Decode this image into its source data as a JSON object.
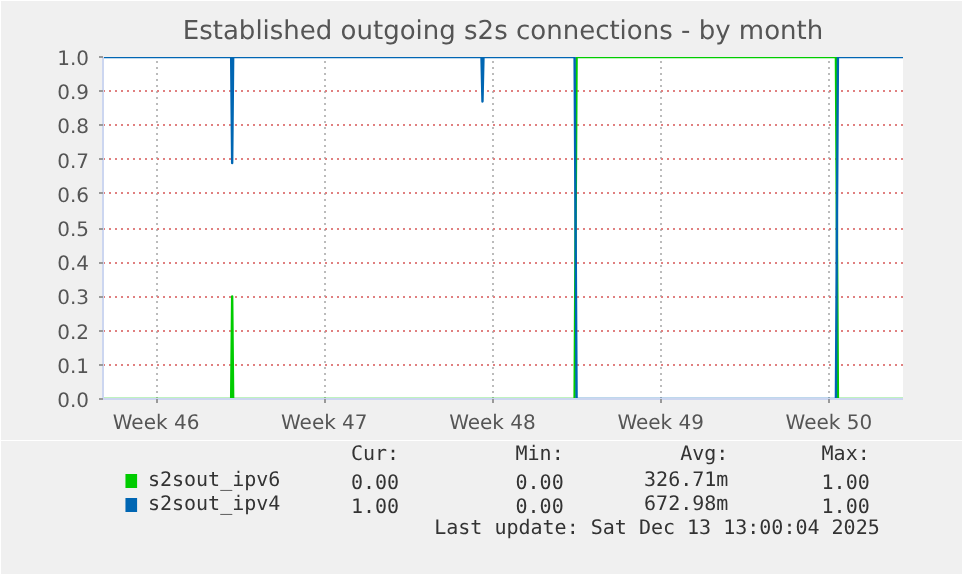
{
  "chart_data": {
    "type": "line",
    "title": "Established outgoing s2s connections - by month",
    "xlim": [
      "2025-11-07T19:00",
      "2025-12-11T02:00"
    ],
    "xticks": [
      {
        "value": "2025-11-10",
        "label": "Week 46"
      },
      {
        "value": "2025-11-17",
        "label": "Week 47"
      },
      {
        "value": "2025-11-24",
        "label": "Week 48"
      },
      {
        "value": "2025-12-01",
        "label": "Week 49"
      },
      {
        "value": "2025-12-08",
        "label": "Week 50"
      }
    ],
    "ylim": [
      0,
      1
    ],
    "yticks": [
      {
        "value": 0,
        "label": "0.0"
      },
      {
        "value": 0.1,
        "label": "0.1"
      },
      {
        "value": 0.2,
        "label": "0.2"
      },
      {
        "value": 0.3,
        "label": "0.3"
      },
      {
        "value": 0.4,
        "label": "0.4"
      },
      {
        "value": 0.5,
        "label": "0.5"
      },
      {
        "value": 0.6,
        "label": "0.6"
      },
      {
        "value": 0.7,
        "label": "0.7"
      },
      {
        "value": 0.8,
        "label": "0.8"
      },
      {
        "value": 0.9,
        "label": "0.9"
      },
      {
        "value": 1,
        "label": "1.0"
      }
    ],
    "grid": true,
    "legend": "bottom",
    "marker": "none",
    "line_style": "solid",
    "series": [
      {
        "name": "s2sout_ipv6",
        "color": "#00cc00",
        "x": [
          "2025-11-07T19:00",
          "2025-11-13T03:00",
          "2025-11-13T04:00",
          "2025-11-13T05:00",
          "2025-11-27T10:00",
          "2025-11-27T12:00",
          "2025-12-08T07:00",
          "2025-12-08T09:00",
          "2025-12-11T02:00"
        ],
        "values": [
          0,
          0,
          0.3,
          0,
          0,
          1,
          1,
          0,
          0
        ]
      },
      {
        "name": "s2sout_ipv4",
        "color": "#0066b3",
        "x": [
          "2025-11-07T19:00",
          "2025-11-13T03:00",
          "2025-11-13T04:00",
          "2025-11-13T05:00",
          "2025-11-23T13:00",
          "2025-11-23T14:00",
          "2025-11-23T15:00",
          "2025-11-27T10:00",
          "2025-11-27T12:00",
          "2025-12-08T07:00",
          "2025-12-08T09:00",
          "2025-12-11T02:00"
        ],
        "values": [
          1,
          1,
          0.69,
          1,
          1,
          0.87,
          1,
          1,
          0,
          0,
          1,
          1
        ]
      }
    ],
    "annotations": [
      "Cur:",
      "Min:",
      "Avg:",
      "Max:",
      "0.00",
      "0.00",
      "326.71m",
      "1.00",
      "1.00",
      "0.00",
      "672.98m",
      "1.00",
      "Last update: Sat Dec 13 13:00:04 2025"
    ]
  }
}
